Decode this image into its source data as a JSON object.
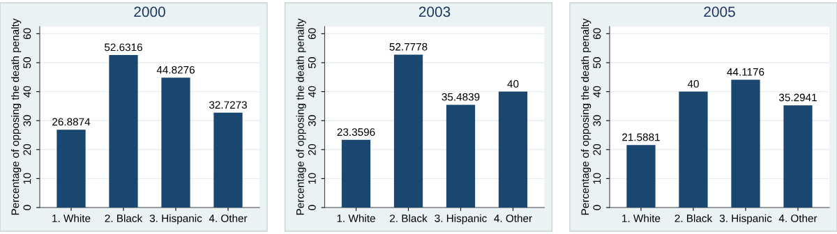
{
  "chart_data": [
    {
      "type": "bar",
      "title": "2000",
      "ylabel": "Percentage of opposing the death penalty",
      "categories": [
        "1. White",
        "2. Black",
        "3. Hispanic",
        "4. Other"
      ],
      "values": [
        26.8874,
        52.6316,
        44.8276,
        32.7273
      ],
      "color": "#1a476f",
      "ylim": [
        0,
        62.5
      ],
      "yticks": [
        0,
        10,
        20,
        30,
        40,
        50,
        60
      ],
      "grid": "y",
      "data_labels": true
    },
    {
      "type": "bar",
      "title": "2003",
      "ylabel": "Percentage of opposing the death penalty",
      "categories": [
        "1. White",
        "2. Black",
        "3. Hispanic",
        "4. Other"
      ],
      "values": [
        23.3596,
        52.7778,
        35.4839,
        40
      ],
      "color": "#1a476f",
      "ylim": [
        0,
        62.5
      ],
      "yticks": [
        0,
        10,
        20,
        30,
        40,
        50,
        60
      ],
      "grid": "y",
      "data_labels": true
    },
    {
      "type": "bar",
      "title": "2005",
      "ylabel": "Percentage of opposing the death penalty",
      "categories": [
        "1. White",
        "2. Black",
        "3. Hispanic",
        "4. Other"
      ],
      "values": [
        21.5881,
        40,
        44.1176,
        35.2941
      ],
      "color": "#1a476f",
      "ylim": [
        0,
        62.5
      ],
      "yticks": [
        0,
        10,
        20,
        30,
        40,
        50,
        60
      ],
      "grid": "y",
      "data_labels": true
    }
  ]
}
